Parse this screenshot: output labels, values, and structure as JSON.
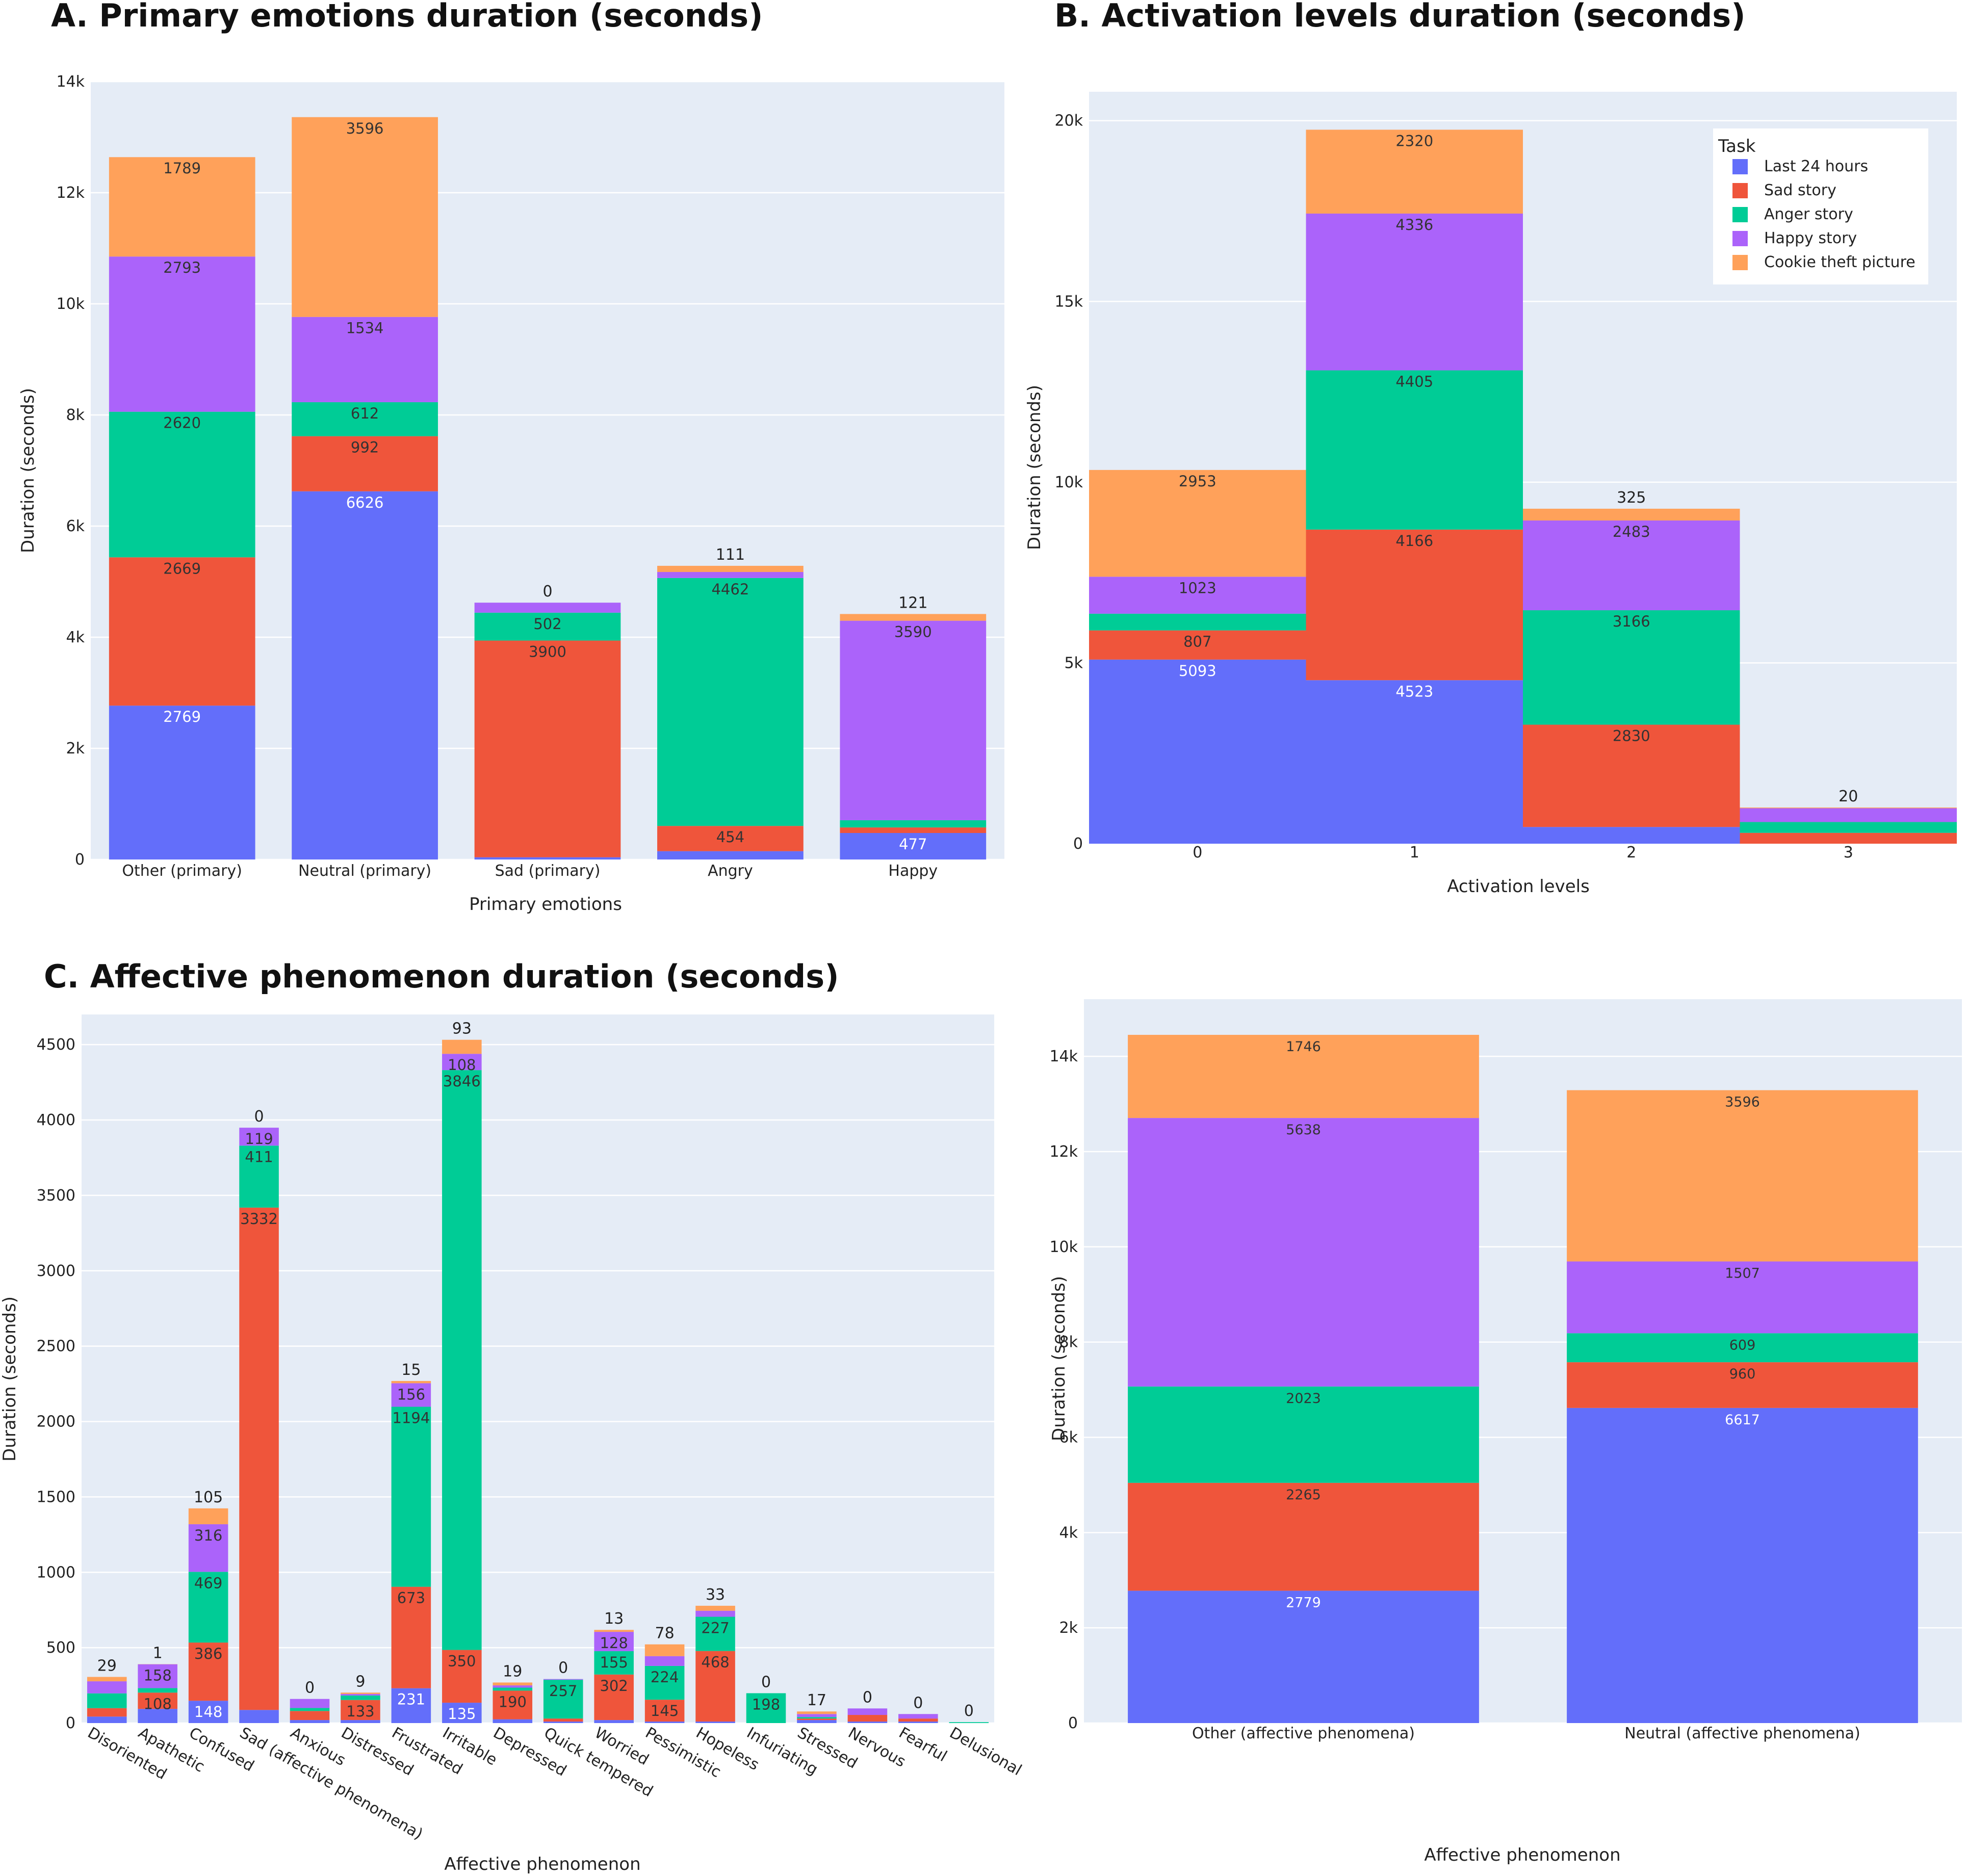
{
  "colors": {
    "Last 24 hours": "#636efa",
    "Sad story": "#ef553b",
    "Anger story": "#00cc96",
    "Happy story": "#ab63fa",
    "Cookie theft picture": "#ffa15a",
    "plot_bg": "#e5ecf6"
  },
  "legend": {
    "title": "Task",
    "entries": [
      "Last 24 hours",
      "Sad story",
      "Anger story",
      "Happy story",
      "Cookie theft picture"
    ]
  },
  "chart_data": [
    {
      "id": "A",
      "type": "bar",
      "stacked": true,
      "title": "A. Primary emotions duration (seconds)",
      "xlabel": "Primary emotions",
      "ylabel": "Duration (seconds)",
      "ylim": [
        0,
        14000
      ],
      "yticks": [
        "0",
        "2k",
        "4k",
        "6k",
        "8k",
        "10k",
        "12k",
        "14k"
      ],
      "categories": [
        "Other (primary)",
        "Neutral (primary)",
        "Sad (primary)",
        "Angry",
        "Happy"
      ],
      "series": [
        {
          "name": "Last 24 hours",
          "values": [
            2769,
            6626,
            40,
            150,
            477
          ]
        },
        {
          "name": "Sad story",
          "values": [
            2669,
            992,
            3900,
            454,
            100
          ]
        },
        {
          "name": "Anger story",
          "values": [
            2620,
            612,
            502,
            4462,
            130
          ]
        },
        {
          "name": "Happy story",
          "values": [
            2793,
            1534,
            180,
            108,
            3590
          ]
        },
        {
          "name": "Cookie theft picture",
          "values": [
            1789,
            3596,
            0,
            111,
            121
          ]
        }
      ]
    },
    {
      "id": "B",
      "type": "bar",
      "stacked": true,
      "title": "B. Activation levels duration (seconds)",
      "xlabel": "Activation levels",
      "ylabel": "Duration (seconds)",
      "ylim": [
        0,
        20800
      ],
      "yticks": [
        "0",
        "5k",
        "10k",
        "15k",
        "20k"
      ],
      "categories": [
        "0",
        "1",
        "2",
        "3"
      ],
      "series": [
        {
          "name": "Last 24 hours",
          "values": [
            5093,
            4523,
            462,
            0
          ]
        },
        {
          "name": "Sad story",
          "values": [
            807,
            4166,
            2830,
            300
          ]
        },
        {
          "name": "Anger story",
          "values": [
            462,
            4405,
            3166,
            300
          ]
        },
        {
          "name": "Happy story",
          "values": [
            1023,
            4336,
            2483,
            380
          ]
        },
        {
          "name": "Cookie theft picture",
          "values": [
            2953,
            2320,
            325,
            20
          ]
        }
      ]
    },
    {
      "id": "C",
      "type": "bar",
      "stacked": true,
      "title": "C. Affective phenomenon duration (seconds)",
      "xlabel": "Affective phenomenon",
      "ylabel": "Duration (seconds)",
      "ylim": [
        0,
        4700
      ],
      "yticks": [
        "0",
        "500",
        "1000",
        "1500",
        "2000",
        "2500",
        "3000",
        "3500",
        "4000",
        "4500"
      ],
      "categories": [
        "Disoriented",
        "Apathetic",
        "Confused",
        "Sad (affective phenomena)",
        "Anxious",
        "Distressed",
        "Frustrated",
        "Irritable",
        "Depressed",
        "Quick tempered",
        "Worried",
        "Pessimistic",
        "Hopeless",
        "Infuriating",
        "Stressed",
        "Nervous",
        "Fearful",
        "Delusional"
      ],
      "series": [
        {
          "name": "Last 24 hours",
          "values": [
            43,
            94,
            148,
            87,
            20,
            20,
            231,
            135,
            25,
            10,
            20,
            10,
            10,
            0,
            20,
            10,
            10,
            0
          ]
        },
        {
          "name": "Sad story",
          "values": [
            56,
            108,
            386,
            3332,
            60,
            133,
            673,
            350,
            190,
            20,
            302,
            145,
            468,
            0,
            10,
            44,
            20,
            0
          ]
        },
        {
          "name": "Anger story",
          "values": [
            98,
            30,
            469,
            411,
            20,
            30,
            1194,
            3846,
            20,
            257,
            155,
            224,
            227,
            198,
            10,
            0,
            0,
            6
          ]
        },
        {
          "name": "Happy story",
          "values": [
            80,
            158,
            316,
            119,
            60,
            10,
            156,
            108,
            15,
            5,
            128,
            65,
            40,
            0,
            20,
            43,
            30,
            0
          ]
        },
        {
          "name": "Cookie theft picture",
          "values": [
            29,
            1,
            105,
            0,
            0,
            9,
            15,
            93,
            19,
            0,
            13,
            78,
            33,
            0,
            17,
            0,
            0,
            0
          ]
        }
      ]
    },
    {
      "id": "D",
      "type": "bar",
      "stacked": true,
      "title": "",
      "xlabel": "Affective phenomenon",
      "ylabel": "Duration (seconds)",
      "ylim": [
        0,
        15200
      ],
      "yticks": [
        "0",
        "2k",
        "4k",
        "6k",
        "8k",
        "10k",
        "12k",
        "14k"
      ],
      "categories": [
        "Other (affective phenomena)",
        "Neutral (affective phenomena)"
      ],
      "series": [
        {
          "name": "Last 24 hours",
          "values": [
            2779,
            6617
          ]
        },
        {
          "name": "Sad story",
          "values": [
            2265,
            960
          ]
        },
        {
          "name": "Anger story",
          "values": [
            2023,
            609
          ]
        },
        {
          "name": "Happy story",
          "values": [
            5638,
            1507
          ]
        },
        {
          "name": "Cookie theft picture",
          "values": [
            1746,
            3596
          ]
        }
      ]
    }
  ]
}
